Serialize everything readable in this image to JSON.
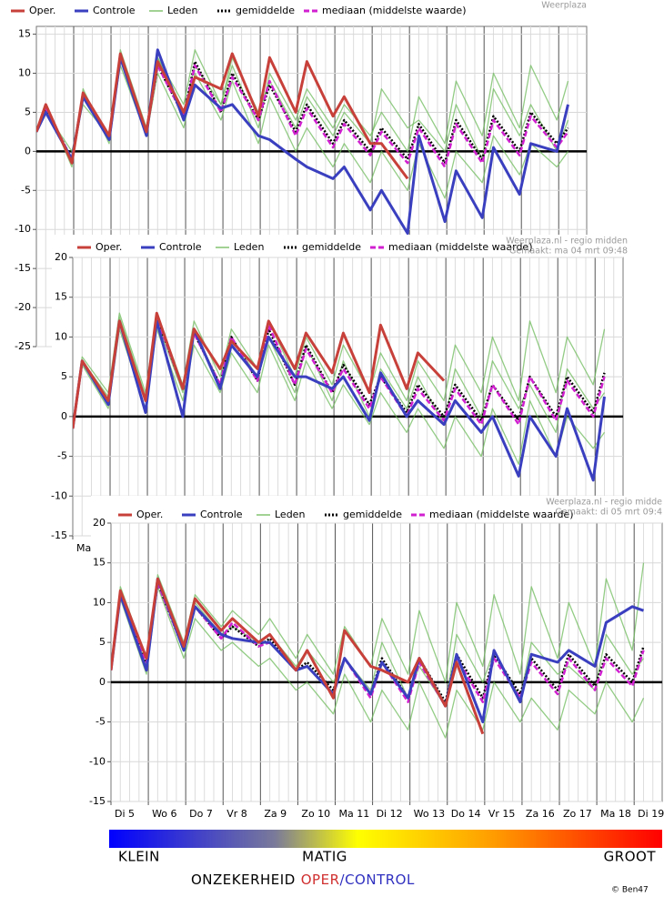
{
  "chart_data": [
    {
      "type": "line",
      "credits": [
        "Weerplaza"
      ],
      "x": [
        0,
        0.25,
        0.95,
        1.25,
        1.95,
        2.25,
        2.95,
        3.25,
        3.95,
        4.25,
        4.95,
        5.25,
        5.95,
        6.25,
        6.95,
        7.25,
        7.95,
        8.25,
        8.95,
        9.25,
        9.95,
        10.25,
        10.95,
        11.25,
        11.95,
        12.25,
        12.95,
        13.25,
        13.95,
        14.25
      ],
      "xlim": [
        0,
        14.75
      ],
      "xticks": [],
      "ylim": [
        -25,
        16
      ],
      "yticks": [
        15,
        10,
        5,
        0,
        -5,
        -10,
        -15,
        -20,
        -25
      ],
      "grid": true,
      "series": [
        {
          "name": "Oper.",
          "color": "#c8403a",
          "style": "solid",
          "values": [
            2.5,
            6,
            -1.5,
            7.5,
            2,
            12.5,
            2.5,
            11.5,
            5,
            9.5,
            8,
            12.5,
            4.5,
            12,
            5,
            11.5,
            4.5,
            7,
            1,
            1,
            -3.5,
            null,
            null,
            null,
            null,
            null,
            null,
            null,
            null,
            null
          ]
        },
        {
          "name": "Controle",
          "color": "#3a3fbf",
          "style": "solid",
          "values": [
            2.5,
            5,
            -1,
            7,
            1.5,
            12,
            2,
            13,
            4,
            8.5,
            5.5,
            6,
            2,
            1.5,
            -1,
            -2,
            -3.5,
            -2,
            -7.5,
            -5,
            -10.5,
            2,
            -9,
            -2.5,
            -8.5,
            0.5,
            -5.5,
            1,
            0,
            6
          ]
        },
        {
          "name": "Leden",
          "color": "#6fbb5c",
          "style": "solid",
          "members": [
            [
              2.5,
              6,
              -2,
              8,
              1,
              13,
              3,
              12,
              6,
              13,
              6,
              11,
              3,
              10,
              4,
              8,
              3,
              6,
              2,
              5,
              0,
              7,
              1,
              9,
              2,
              10,
              3,
              11,
              4,
              9
            ],
            [
              2.5,
              5,
              0,
              6,
              2,
              11,
              2,
              10,
              3,
              10,
              4,
              9,
              1,
              7,
              0,
              3,
              -2,
              1,
              -4,
              0,
              -5,
              1,
              -6,
              0,
              -4,
              2,
              -3,
              1,
              -2,
              0
            ],
            [
              2.5,
              5.5,
              -1,
              7.5,
              2,
              12,
              3,
              12,
              5,
              11,
              6,
              12,
              5,
              9,
              3,
              7,
              2,
              5,
              1,
              8,
              3,
              4,
              0,
              6,
              -1,
              8,
              2,
              6,
              0,
              4
            ]
          ]
        },
        {
          "name": "gemiddelde",
          "color": "#000000",
          "style": "dotted",
          "values": [
            2.5,
            5.5,
            -1,
            7,
            1.5,
            12,
            2.5,
            11,
            4.5,
            11.5,
            5,
            10,
            4,
            8.5,
            2.5,
            6,
            1,
            4,
            0,
            3,
            -1,
            3.5,
            -1.5,
            4,
            -1,
            4.5,
            0,
            5,
            1,
            3
          ]
        },
        {
          "name": "mediaan (middelste waarde)",
          "color": "#d020d0",
          "style": "dashed",
          "values": [
            2.5,
            5.5,
            -1,
            7,
            1.5,
            12,
            2.5,
            11,
            4.5,
            11,
            5,
            9.5,
            4,
            9,
            2,
            5.5,
            0.5,
            3.5,
            -0.5,
            2.5,
            -1.5,
            3,
            -2,
            3.5,
            -1.5,
            4,
            -0.5,
            4.5,
            0.5,
            2.5
          ]
        }
      ]
    },
    {
      "type": "line",
      "credits": [
        "Weerplaza.nl - regio midden",
        "Gemaakt: ma 04 mrt 09:48"
      ],
      "x": [
        0,
        0.25,
        0.95,
        1.25,
        1.95,
        2.25,
        2.95,
        3.25,
        3.95,
        4.25,
        4.95,
        5.25,
        5.95,
        6.25,
        6.95,
        7.25,
        7.95,
        8.25,
        8.95,
        9.25,
        9.95,
        10.25,
        10.95,
        11.25,
        11.95,
        12.25,
        12.95,
        13.25,
        13.95,
        14.25
      ],
      "xlim": [
        0,
        14.75
      ],
      "xticks": [
        {
          "value": 0,
          "label": "Ma"
        }
      ],
      "ylim": [
        -15,
        20
      ],
      "yticks": [
        20,
        15,
        10,
        5,
        0,
        -5,
        -10,
        -15
      ],
      "grid": true,
      "series": [
        {
          "name": "Oper.",
          "color": "#c8403a",
          "style": "solid",
          "values": [
            -1.5,
            7,
            2,
            12,
            2,
            13,
            3.5,
            11,
            6,
            9.5,
            6,
            12,
            6,
            10.5,
            5.5,
            10.5,
            3,
            11.5,
            3.5,
            8,
            4.5,
            null,
            null,
            null,
            null,
            null,
            null,
            null,
            null,
            null
          ]
        },
        {
          "name": "Controle",
          "color": "#3a3fbf",
          "style": "solid",
          "values": [
            -1.5,
            7,
            1.5,
            12,
            0.5,
            12,
            0,
            11,
            3.5,
            9,
            5,
            10,
            5,
            5,
            3.5,
            5,
            -0.5,
            5.5,
            0,
            2,
            -1,
            2,
            -2,
            0,
            -7.5,
            0,
            -5,
            1,
            -8,
            2.5
          ]
        },
        {
          "name": "Leden",
          "color": "#6fbb5c",
          "style": "solid",
          "members": [
            [
              -1.5,
              7.5,
              3,
              13,
              3,
              13,
              4,
              12,
              5,
              11,
              6,
              12,
              5,
              10,
              4,
              9,
              3,
              8,
              2,
              7,
              2,
              9,
              3,
              10,
              2,
              12,
              3,
              10,
              4,
              11
            ],
            [
              -1.5,
              6.5,
              1,
              11,
              1,
              11,
              2,
              9,
              3,
              8,
              3,
              9,
              2,
              7,
              1,
              4,
              -1,
              3,
              -2,
              1,
              -4,
              0,
              -5,
              1,
              -6,
              2,
              -5,
              0,
              -4,
              -2
            ],
            [
              -1.5,
              7,
              2.5,
              12.5,
              2.5,
              12,
              3,
              11,
              4,
              10,
              5,
              10,
              3,
              9,
              2,
              7,
              0,
              6,
              1,
              5,
              -1,
              6,
              0,
              7,
              1,
              4,
              -2,
              6,
              1,
              3
            ]
          ]
        },
        {
          "name": "gemiddelde",
          "color": "#000000",
          "style": "dotted",
          "values": [
            -1.5,
            7,
            2,
            12,
            2,
            12.5,
            3.5,
            10.5,
            4,
            10,
            4.5,
            11,
            4,
            9,
            3,
            6.5,
            1.5,
            5,
            0.5,
            4,
            0,
            4,
            -0.5,
            4,
            -0.5,
            5,
            0,
            5,
            0.5,
            5.5
          ]
        },
        {
          "name": "mediaan (middelste waarde)",
          "color": "#d020d0",
          "style": "dashed",
          "values": [
            -1.5,
            7,
            2,
            12,
            2,
            12.5,
            3.5,
            10.5,
            4,
            10,
            4.5,
            11.5,
            4,
            8.5,
            3,
            6,
            1,
            5,
            0,
            3.5,
            -0.5,
            3.5,
            -1,
            4,
            -1,
            5,
            -0.5,
            4.5,
            0,
            5
          ]
        }
      ]
    },
    {
      "type": "line",
      "credits": [
        "Weerplaza.nl - regio midde",
        "Gemaakt: di 05 mrt 09:4"
      ],
      "x": [
        0,
        0.25,
        0.95,
        1.25,
        1.95,
        2.25,
        2.95,
        3.25,
        3.95,
        4.25,
        4.95,
        5.25,
        5.95,
        6.25,
        6.95,
        7.25,
        7.95,
        8.25,
        8.95,
        9.25,
        9.95,
        10.25,
        10.95,
        11.25,
        11.95,
        12.25,
        12.95,
        13.25,
        13.95,
        14.25
      ],
      "xlim": [
        0,
        14.75
      ],
      "xticks": [
        {
          "value": 0,
          "label": "Di 5"
        },
        {
          "value": 1,
          "label": "Wo 6"
        },
        {
          "value": 2,
          "label": "Do 7"
        },
        {
          "value": 3,
          "label": "Vr 8"
        },
        {
          "value": 4,
          "label": "Za 9"
        },
        {
          "value": 5,
          "label": "Zo 10"
        },
        {
          "value": 6,
          "label": "Ma 11"
        },
        {
          "value": 7,
          "label": "Di 12"
        },
        {
          "value": 8,
          "label": "Wo 13"
        },
        {
          "value": 9,
          "label": "Do 14"
        },
        {
          "value": 10,
          "label": "Vr 15"
        },
        {
          "value": 11,
          "label": "Za 16"
        },
        {
          "value": 12,
          "label": "Zo 17"
        },
        {
          "value": 13,
          "label": "Ma 18"
        },
        {
          "value": 14,
          "label": "Di 19"
        }
      ],
      "ylim": [
        -15,
        20
      ],
      "yticks": [
        20,
        15,
        10,
        5,
        0,
        -5,
        -10,
        -15
      ],
      "grid": true,
      "series": [
        {
          "name": "Oper.",
          "color": "#c8403a",
          "style": "solid",
          "values": [
            1.5,
            11.5,
            3,
            13,
            4.5,
            10.5,
            6.5,
            8,
            5,
            6,
            1.5,
            4,
            -2,
            6.5,
            2,
            1.5,
            0,
            3,
            -3,
            2.5,
            -6.5,
            null,
            null,
            null,
            null,
            null,
            null,
            null,
            null,
            null
          ]
        },
        {
          "name": "Controle",
          "color": "#3a3fbf",
          "style": "solid",
          "values": [
            1.5,
            11,
            1.5,
            13,
            4,
            9.5,
            6,
            5.5,
            5,
            5,
            1.5,
            2,
            -1.5,
            3,
            -1.5,
            2.5,
            -2,
            3,
            -3,
            3.5,
            -5,
            4,
            -2.5,
            3.5,
            2.5,
            4,
            2,
            7.5,
            9.5,
            9
          ]
        },
        {
          "name": "Leden",
          "color": "#6fbb5c",
          "style": "solid",
          "members": [
            [
              1.5,
              12,
              3,
              13.5,
              5,
              11,
              7,
              9,
              6,
              8,
              3,
              6,
              1,
              7,
              2,
              8,
              1,
              9,
              0,
              10,
              2,
              11,
              1,
              12,
              3,
              10,
              2,
              13,
              4,
              15
            ],
            [
              1.5,
              10.5,
              1,
              12,
              3,
              8,
              4,
              5,
              2,
              3,
              -1,
              0,
              -4,
              1,
              -5,
              -1,
              -6,
              0,
              -7,
              -1,
              -6,
              0,
              -5,
              -2,
              -6,
              -1,
              -4,
              0,
              -5,
              -2
            ],
            [
              1.5,
              11.5,
              2,
              13,
              4,
              10,
              6,
              7,
              5,
              6,
              2,
              4,
              0,
              3,
              -1,
              5,
              -2,
              2,
              -3,
              6,
              0,
              4,
              -2,
              5,
              1,
              2,
              -1,
              6,
              1,
              3
            ]
          ]
        },
        {
          "name": "gemiddelde",
          "color": "#000000",
          "style": "dotted",
          "values": [
            1.5,
            11,
            2.5,
            12.5,
            4,
            9.5,
            5.5,
            7,
            4.5,
            5.5,
            1.5,
            2.5,
            -1,
            3,
            -1.5,
            3,
            -2,
            3,
            -2.5,
            3.5,
            -2,
            3.5,
            -1.5,
            3,
            -1,
            3.5,
            -0.5,
            3.5,
            0,
            4.5
          ]
        },
        {
          "name": "mediaan (middelste waarde)",
          "color": "#d020d0",
          "style": "dashed",
          "values": [
            1.5,
            11,
            2.5,
            12.5,
            4,
            9.5,
            5.5,
            7.5,
            4.5,
            5,
            1.5,
            2,
            -1.5,
            3,
            -2,
            2.5,
            -2.5,
            2.5,
            -3,
            3,
            -2.5,
            3,
            -2,
            2.5,
            -1.5,
            3,
            -1,
            3,
            -0.5,
            4
          ]
        }
      ]
    }
  ],
  "footer": {
    "scale": [
      "KLEIN",
      "MATIG",
      "GROOT"
    ],
    "uncertainty": "ONZEKERHEID",
    "oper": "OPER",
    "control": "/CONTROL",
    "credit": "© Ben47"
  }
}
